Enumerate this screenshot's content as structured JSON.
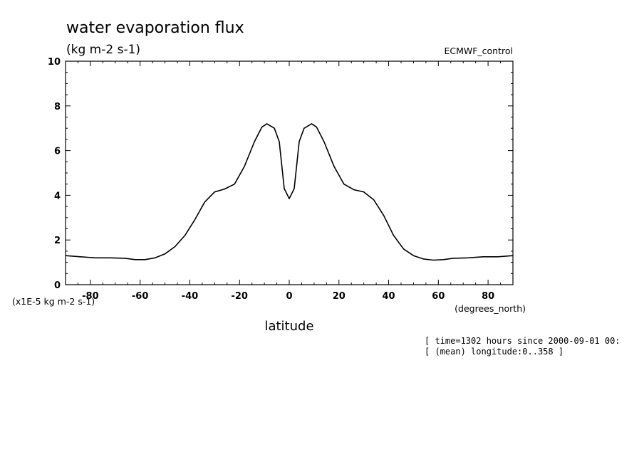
{
  "chart_data": {
    "type": "line",
    "title": "water evaporation flux",
    "units": "(kg m-2 s-1)",
    "dataset": "ECMWF_control",
    "xlabel": "latitude",
    "x_units": "(degrees_north)",
    "y_scale_label": "(x1E-5 kg m-2 s-1)",
    "xlim": [
      -90,
      90
    ],
    "ylim": [
      0,
      10
    ],
    "x_ticks": [
      -80,
      -60,
      -40,
      -20,
      0,
      20,
      40,
      60,
      80
    ],
    "x_tick_labels": [
      "-80",
      "-60",
      "-40",
      "-20",
      "0",
      "20",
      "40",
      "60",
      "80"
    ],
    "y_ticks": [
      0,
      2,
      4,
      6,
      8,
      10
    ],
    "y_tick_labels": [
      "0",
      "2",
      "4",
      "6",
      "8",
      "10"
    ],
    "grid": false,
    "series": [
      {
        "x": [
          -90,
          -84,
          -78,
          -72,
          -66,
          -62,
          -58,
          -54,
          -50,
          -46,
          -42,
          -38,
          -34,
          -30,
          -26,
          -22,
          -18,
          -14,
          -11,
          -9,
          -6,
          -4,
          -2,
          0,
          2,
          4,
          6,
          9,
          11,
          14,
          18,
          22,
          26,
          30,
          34,
          38,
          42,
          46,
          50,
          54,
          58,
          62,
          66,
          72,
          78,
          84,
          90
        ],
        "y": [
          1.3,
          1.25,
          1.2,
          1.2,
          1.18,
          1.12,
          1.12,
          1.2,
          1.38,
          1.7,
          2.2,
          2.9,
          3.7,
          4.15,
          4.28,
          4.5,
          5.3,
          6.4,
          7.05,
          7.2,
          7.0,
          6.4,
          4.3,
          3.85,
          4.3,
          6.4,
          7.0,
          7.2,
          7.05,
          6.4,
          5.3,
          4.5,
          4.25,
          4.15,
          3.8,
          3.1,
          2.2,
          1.6,
          1.3,
          1.15,
          1.1,
          1.12,
          1.18,
          1.2,
          1.25,
          1.25,
          1.3
        ]
      }
    ]
  },
  "annotations": {
    "time_line": "[ time=1302 hours since 2000-09-01 00:",
    "longitude_line": "[ (mean) longitude:0..358 ]"
  }
}
